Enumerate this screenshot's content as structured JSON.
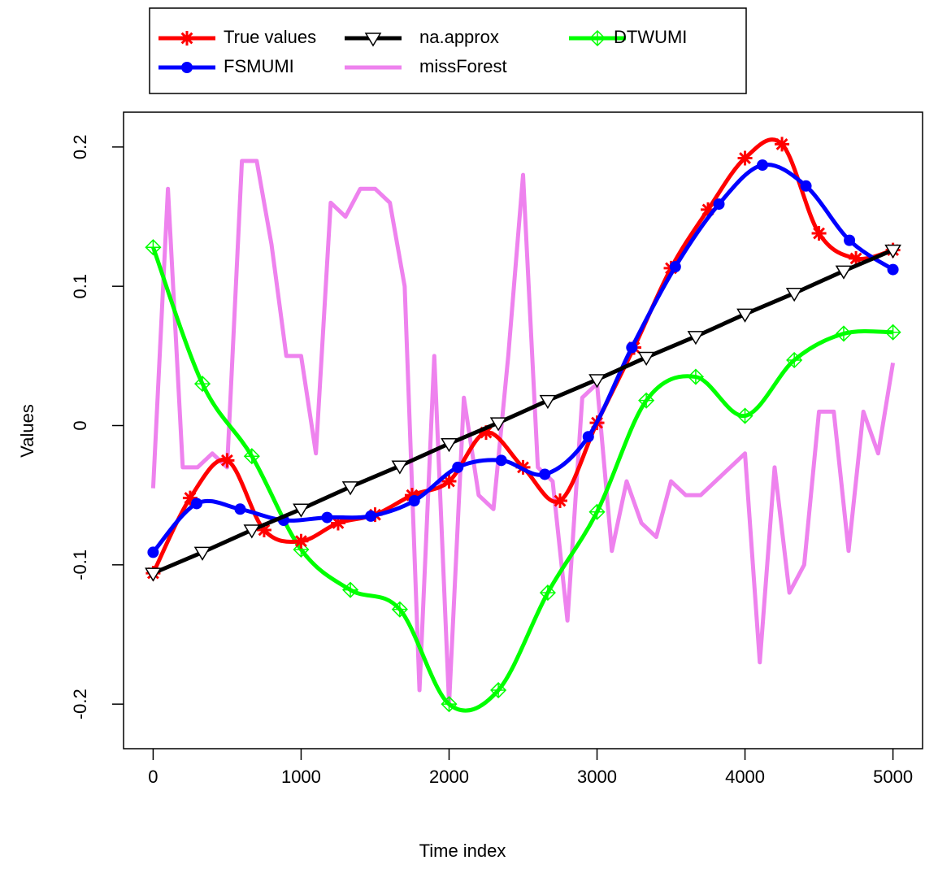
{
  "chart_data": {
    "type": "line",
    "x_label": "Time index",
    "y_label": "Values",
    "xlim": [
      -200,
      5200
    ],
    "ylim": [
      -0.232,
      0.225
    ],
    "xticks": [
      0,
      1000,
      2000,
      3000,
      4000,
      5000
    ],
    "yticks": [
      -0.2,
      -0.1,
      0.0,
      0.1,
      0.2
    ],
    "legend": "top",
    "series": [
      {
        "name": "missForest",
        "color": "#ee82ee",
        "marker": "none",
        "smooth": false,
        "x": [
          0,
          100,
          200,
          300,
          400,
          500,
          600,
          700,
          800,
          900,
          1000,
          1100,
          1200,
          1300,
          1400,
          1500,
          1600,
          1700,
          1800,
          1900,
          2000,
          2100,
          2200,
          2300,
          2400,
          2500,
          2600,
          2700,
          2800,
          2900,
          3000,
          3100,
          3200,
          3300,
          3400,
          3500,
          3600,
          3700,
          3800,
          3900,
          4000,
          4100,
          4200,
          4300,
          4400,
          4500,
          4600,
          4700,
          4800,
          4900,
          5000
        ],
        "values": [
          -0.045,
          0.17,
          -0.03,
          -0.03,
          -0.02,
          -0.03,
          0.19,
          0.19,
          0.13,
          0.05,
          0.05,
          -0.02,
          0.16,
          0.15,
          0.17,
          0.17,
          0.16,
          0.1,
          -0.19,
          0.05,
          -0.2,
          0.02,
          -0.05,
          -0.06,
          0.05,
          0.18,
          -0.03,
          -0.04,
          -0.14,
          0.02,
          0.03,
          -0.09,
          -0.04,
          -0.07,
          -0.08,
          -0.04,
          -0.05,
          -0.05,
          -0.04,
          -0.03,
          -0.02,
          -0.17,
          -0.03,
          -0.12,
          -0.1,
          0.01,
          0.01,
          -0.09,
          0.01,
          -0.02,
          0.045
        ]
      },
      {
        "name": "DTWUMI",
        "color": "#00ff00",
        "marker": "diamond",
        "smooth": true,
        "x": [
          0,
          333,
          667,
          1000,
          1333,
          1667,
          2000,
          2333,
          2667,
          3000,
          3333,
          3667,
          4000,
          4333,
          4667,
          5000
        ],
        "values": [
          0.128,
          0.03,
          -0.022,
          -0.089,
          -0.118,
          -0.132,
          -0.2,
          -0.19,
          -0.12,
          -0.062,
          0.018,
          0.035,
          0.007,
          0.047,
          0.066,
          0.067
        ]
      },
      {
        "name": "True values",
        "color": "#ff0000",
        "marker": "asterisk",
        "smooth": true,
        "x": [
          0,
          250,
          500,
          750,
          1000,
          1250,
          1500,
          1750,
          2000,
          2250,
          2500,
          2750,
          3000,
          3250,
          3500,
          3750,
          4000,
          4250,
          4500,
          4750,
          5000
        ],
        "values": [
          -0.106,
          -0.052,
          -0.025,
          -0.075,
          -0.083,
          -0.07,
          -0.064,
          -0.05,
          -0.04,
          -0.005,
          -0.03,
          -0.054,
          0.002,
          0.056,
          0.113,
          0.155,
          0.192,
          0.202,
          0.138,
          0.12,
          0.126
        ]
      },
      {
        "name": "FSMUMI",
        "color": "#0000ff",
        "marker": "circle",
        "smooth": true,
        "x": [
          0,
          294,
          588,
          882,
          1176,
          1471,
          1765,
          2059,
          2353,
          2647,
          2941,
          3235,
          3529,
          3824,
          4118,
          4412,
          4706,
          5000
        ],
        "values": [
          -0.091,
          -0.056,
          -0.06,
          -0.068,
          -0.066,
          -0.065,
          -0.054,
          -0.03,
          -0.025,
          -0.035,
          -0.008,
          0.056,
          0.114,
          0.159,
          0.187,
          0.172,
          0.133,
          0.112
        ]
      },
      {
        "name": "na.approx",
        "color": "#000000",
        "marker": "triangle",
        "smooth": false,
        "x": [
          0,
          333,
          667,
          1000,
          1333,
          1667,
          2000,
          2333,
          2667,
          3000,
          3333,
          3667,
          4000,
          4333,
          4667,
          5000
        ],
        "values": [
          -0.106,
          -0.091,
          -0.075,
          -0.06,
          -0.044,
          -0.029,
          -0.013,
          0.002,
          0.018,
          0.033,
          0.049,
          0.064,
          0.08,
          0.095,
          0.111,
          0.126
        ]
      }
    ]
  }
}
